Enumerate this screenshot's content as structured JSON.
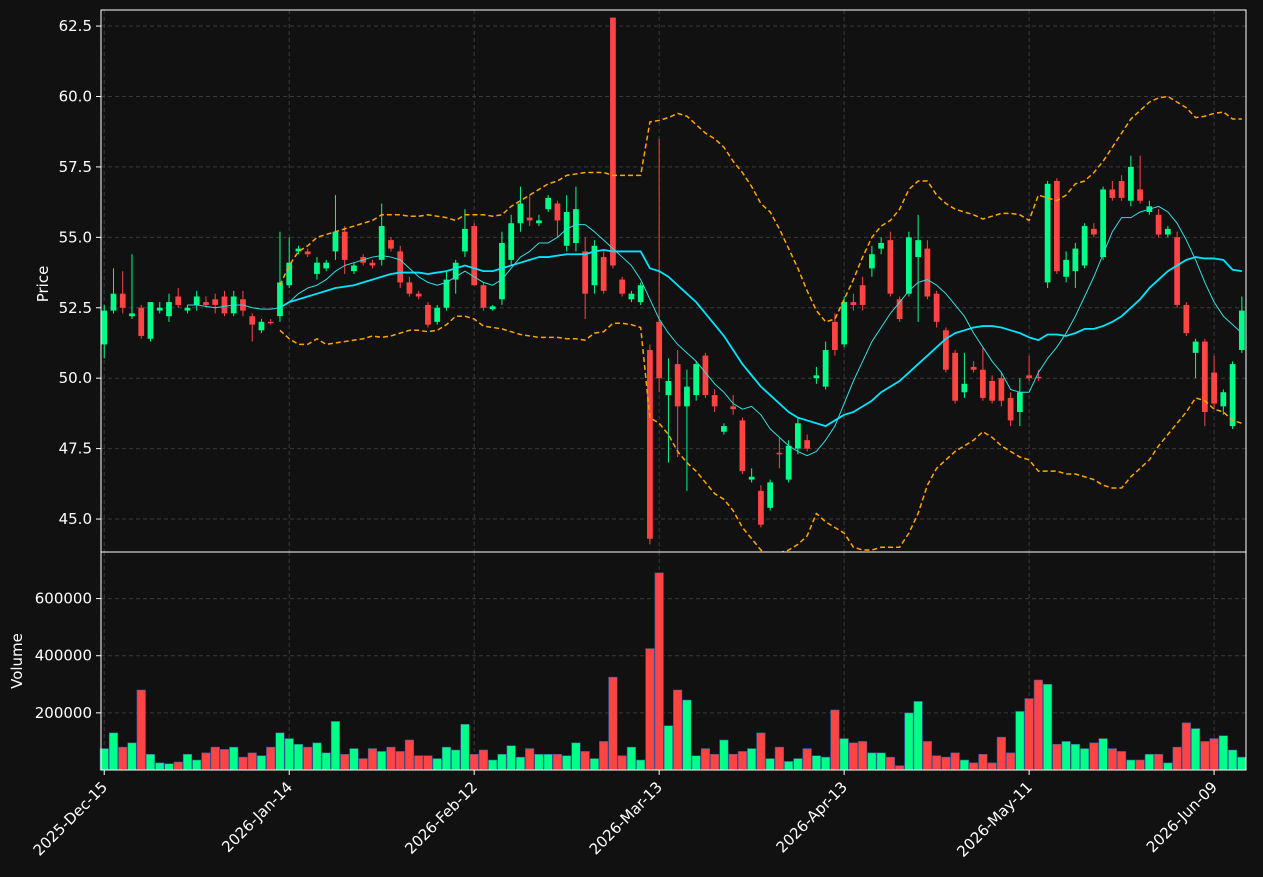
{
  "chart_data": {
    "type": "candlestick",
    "categories": [
      "2025-Dec-15",
      null,
      null,
      null,
      null,
      null,
      null,
      null,
      null,
      null,
      null,
      null,
      null,
      null,
      null,
      null,
      null,
      null,
      null,
      null,
      "2026-Jan-14",
      null,
      null,
      null,
      null,
      null,
      null,
      null,
      null,
      null,
      null,
      null,
      null,
      null,
      null,
      null,
      null,
      null,
      null,
      null,
      "2026-Feb-12",
      null,
      null,
      null,
      null,
      null,
      null,
      null,
      null,
      null,
      null,
      null,
      null,
      null,
      null,
      null,
      null,
      null,
      null,
      null,
      "2026-Mar-13",
      null,
      null,
      null,
      null,
      null,
      null,
      null,
      null,
      null,
      null,
      null,
      null,
      null,
      null,
      null,
      null,
      null,
      null,
      null,
      "2026-Apr-13",
      null,
      null,
      null,
      null,
      null,
      null,
      null,
      null,
      null,
      null,
      null,
      null,
      null,
      null,
      null,
      null,
      null,
      null,
      null,
      "2026-May-11",
      null,
      null,
      null,
      null,
      null,
      null,
      null,
      null,
      null,
      null,
      null,
      null,
      null,
      null,
      null,
      null,
      null,
      null,
      null,
      "2026-Jun-09",
      null,
      null,
      null
    ],
    "xlim": [
      -0.35,
      123.45
    ],
    "ylabel": "Price",
    "ylim": [
      43.83,
      63.07
    ],
    "yticks": [
      {
        "value": 45,
        "label": "45.0"
      },
      47.5,
      {
        "value": 50,
        "label": "50.0"
      },
      52.5,
      {
        "value": 55,
        "label": "55.0"
      },
      57.5,
      {
        "value": 60,
        "label": "60.0"
      },
      62.5
    ],
    "y2label": "Volume",
    "y2lim": [
      0,
      763000
    ],
    "y2ticks": [
      200000,
      400000,
      600000
    ],
    "grid": true,
    "up_color": "#00ff88",
    "down_color": "#ff4444",
    "open": [
      51.2,
      52.4,
      53.0,
      52.2,
      52.5,
      51.4,
      52.4,
      52.2,
      52.9,
      52.4,
      52.6,
      52.7,
      52.8,
      52.9,
      52.3,
      52.8,
      52.2,
      51.7,
      52.0,
      52.2,
      53.3,
      54.5,
      54.5,
      53.7,
      53.9,
      54.5,
      55.2,
      53.8,
      54.3,
      54.1,
      54.2,
      54.9,
      54.5,
      53.4,
      53.0,
      52.6,
      52.0,
      52.5,
      53.5,
      54.5,
      55.4,
      53.3,
      52.45,
      52.8,
      54.2,
      55.5,
      55.7,
      55.5,
      56.0,
      56.2,
      54.7,
      54.8,
      54.5,
      53.3,
      54.3,
      62.8,
      53.5,
      52.8,
      52.7,
      51.0,
      52.0,
      49.4,
      50.5,
      49.0,
      49.4,
      50.8,
      49.4,
      48.1,
      49.0,
      48.5,
      46.4,
      46.0,
      45.4,
      47.35,
      46.4,
      47.5,
      47.8,
      50.0,
      49.7,
      52.0,
      51.2,
      52.7,
      53.3,
      53.9,
      54.6,
      54.9,
      52.8,
      53.0,
      54.3,
      54.6,
      53.0,
      51.7,
      50.9,
      49.5,
      50.4,
      50.3,
      49.9,
      50.0,
      49.3,
      48.8,
      50.1,
      50.05,
      53.4,
      57.0,
      53.6,
      53.8,
      54.0,
      55.3,
      54.3,
      56.7,
      57.0,
      56.3,
      56.7,
      55.9,
      55.8,
      55.1,
      55.0,
      52.6,
      50.9,
      51.3,
      50.2,
      49.0,
      48.3,
      51.0
    ],
    "high": [
      52.6,
      53.9,
      53.8,
      54.4,
      52.6,
      52.7,
      52.7,
      53.0,
      53.2,
      52.6,
      53.1,
      52.9,
      53.0,
      53.1,
      53.1,
      53.1,
      52.3,
      52.1,
      52.1,
      55.2,
      55.0,
      54.7,
      54.6,
      54.3,
      54.2,
      56.5,
      55.4,
      54.1,
      54.4,
      54.2,
      56.2,
      55.0,
      54.7,
      53.6,
      53.1,
      52.7,
      52.6,
      53.8,
      54.2,
      56.0,
      55.5,
      53.4,
      52.6,
      55.2,
      55.8,
      56.8,
      56.5,
      55.8,
      56.5,
      56.3,
      56.5,
      56.8,
      55.0,
      54.9,
      54.5,
      62.8,
      53.6,
      53.1,
      53.4,
      51.2,
      58.5,
      50.7,
      51.0,
      50.3,
      50.6,
      50.9,
      49.6,
      48.4,
      49.4,
      48.6,
      46.8,
      46.2,
      46.4,
      47.9,
      47.8,
      48.6,
      48.0,
      50.4,
      51.3,
      52.3,
      52.9,
      53.0,
      53.6,
      54.7,
      55.0,
      55.2,
      52.9,
      55.2,
      55.8,
      54.9,
      53.1,
      51.8,
      51.0,
      50.9,
      50.6,
      51.1,
      50.1,
      50.2,
      49.5,
      50.0,
      50.8,
      50.3,
      57.0,
      57.1,
      54.5,
      54.8,
      55.5,
      55.5,
      56.8,
      57.0,
      57.2,
      57.9,
      57.9,
      56.3,
      56.0,
      55.4,
      55.2,
      52.7,
      51.4,
      51.4,
      50.8,
      49.6,
      50.6,
      52.9
    ],
    "low": [
      50.7,
      52.3,
      52.3,
      52.1,
      51.4,
      51.3,
      52.3,
      52.0,
      52.5,
      52.3,
      52.4,
      52.5,
      52.3,
      52.2,
      52.2,
      52.2,
      51.3,
      51.6,
      51.9,
      52.0,
      53.2,
      54.4,
      54.3,
      53.5,
      53.8,
      54.2,
      53.7,
      53.7,
      54.0,
      53.9,
      54.0,
      54.5,
      53.2,
      52.9,
      52.8,
      51.8,
      51.9,
      52.4,
      53.0,
      54.3,
      53.3,
      52.4,
      52.4,
      52.6,
      54.0,
      55.2,
      55.4,
      55.4,
      55.9,
      55.0,
      54.5,
      54.5,
      52.1,
      53.0,
      53.0,
      53.9,
      52.9,
      52.7,
      52.6,
      44.1,
      49.5,
      47.0,
      47.2,
      46.0,
      49.2,
      49.3,
      48.8,
      48.0,
      48.7,
      46.6,
      46.3,
      44.7,
      45.3,
      46.8,
      46.3,
      47.3,
      47.4,
      49.8,
      49.6,
      50.8,
      51.1,
      52.4,
      52.4,
      53.6,
      54.4,
      52.9,
      52.0,
      52.9,
      52.0,
      52.8,
      51.8,
      50.2,
      49.1,
      49.3,
      50.2,
      49.2,
      49.1,
      49.0,
      48.3,
      48.3,
      49.9,
      49.9,
      53.2,
      53.7,
      53.4,
      53.2,
      53.9,
      55.0,
      54.2,
      56.3,
      56.3,
      56.1,
      56.2,
      55.8,
      55.0,
      55.0,
      52.5,
      51.5,
      50.0,
      48.3,
      48.9,
      48.7,
      48.2,
      50.9
    ],
    "close": [
      52.4,
      53.0,
      52.5,
      52.3,
      51.5,
      52.7,
      52.5,
      52.7,
      52.6,
      52.5,
      52.9,
      52.6,
      52.6,
      52.3,
      52.9,
      52.4,
      51.9,
      52.0,
      51.95,
      53.4,
      54.1,
      54.6,
      54.4,
      54.1,
      54.1,
      55.2,
      54.2,
      54.0,
      54.1,
      54.0,
      55.4,
      54.6,
      53.4,
      53.0,
      52.9,
      51.9,
      52.5,
      53.5,
      54.1,
      55.3,
      53.3,
      52.5,
      52.55,
      54.8,
      55.5,
      56.2,
      55.6,
      55.6,
      56.4,
      55.6,
      55.9,
      56.0,
      53.0,
      54.7,
      53.1,
      54.0,
      53.0,
      53.0,
      53.3,
      44.3,
      50.0,
      49.9,
      49.0,
      49.7,
      50.5,
      49.4,
      49.0,
      48.3,
      48.9,
      46.7,
      46.5,
      44.8,
      46.3,
      47.3,
      47.6,
      48.4,
      47.5,
      50.1,
      51.0,
      51.0,
      52.7,
      52.6,
      52.6,
      54.4,
      54.8,
      53.0,
      52.1,
      55.0,
      54.9,
      52.9,
      52.0,
      50.3,
      49.2,
      49.8,
      50.3,
      49.3,
      49.2,
      49.2,
      48.5,
      49.5,
      50.0,
      50.0,
      56.9,
      53.8,
      54.2,
      54.6,
      55.4,
      55.1,
      56.7,
      56.4,
      56.4,
      57.5,
      56.3,
      56.1,
      55.1,
      55.3,
      52.6,
      51.6,
      51.3,
      48.8,
      49.1,
      49.5,
      50.5,
      52.4
    ],
    "volume": [
      75000,
      130000,
      80000,
      95000,
      280000,
      55000,
      25000,
      22000,
      28000,
      55000,
      35000,
      60000,
      80000,
      72000,
      80000,
      45000,
      60000,
      50000,
      80000,
      130000,
      110000,
      90000,
      80000,
      95000,
      60000,
      170000,
      55000,
      75000,
      40000,
      75000,
      65000,
      80000,
      65000,
      105000,
      50000,
      50000,
      40000,
      80000,
      70000,
      160000,
      55000,
      70000,
      35000,
      55000,
      85000,
      45000,
      75000,
      55000,
      55000,
      55000,
      50000,
      95000,
      65000,
      40000,
      100000,
      325000,
      50000,
      80000,
      35000,
      425000,
      690000,
      155000,
      280000,
      245000,
      50000,
      75000,
      55000,
      105000,
      55000,
      65000,
      75000,
      130000,
      40000,
      80000,
      30000,
      40000,
      75000,
      50000,
      45000,
      210000,
      110000,
      95000,
      100000,
      60000,
      60000,
      45000,
      15000,
      200000,
      240000,
      100000,
      50000,
      45000,
      60000,
      35000,
      25000,
      55000,
      25000,
      115000,
      60000,
      205000,
      250000,
      315000,
      300000,
      90000,
      100000,
      90000,
      75000,
      95000,
      110000,
      75000,
      65000,
      35000,
      35000,
      55000,
      55000,
      25000,
      80000,
      165000,
      145000,
      100000,
      110000,
      120000,
      70000,
      45000
    ],
    "overlays": [
      {
        "color": "#00e5ff",
        "linewidth": 1.8,
        "dashed": false,
        "values": [
          null,
          null,
          null,
          null,
          null,
          null,
          null,
          null,
          null,
          null,
          null,
          null,
          null,
          null,
          null,
          null,
          null,
          null,
          null,
          52.5,
          52.7,
          52.8,
          52.9,
          53.0,
          53.1,
          53.2,
          53.25,
          53.3,
          53.4,
          53.5,
          53.6,
          53.7,
          53.75,
          53.75,
          53.75,
          53.7,
          53.75,
          53.8,
          53.9,
          54.0,
          53.9,
          53.8,
          53.8,
          53.9,
          54.0,
          54.1,
          54.2,
          54.3,
          54.3,
          54.35,
          54.4,
          54.4,
          54.4,
          54.5,
          54.55,
          54.5,
          54.5,
          54.5,
          54.5,
          53.9,
          53.8,
          53.6,
          53.3,
          53.0,
          52.7,
          52.3,
          51.9,
          51.5,
          51.0,
          50.5,
          50.1,
          49.7,
          49.4,
          49.1,
          48.8,
          48.6,
          48.5,
          48.4,
          48.3,
          48.5,
          48.7,
          48.8,
          49.0,
          49.2,
          49.5,
          49.7,
          49.9,
          50.2,
          50.5,
          50.8,
          51.1,
          51.4,
          51.6,
          51.7,
          51.8,
          51.85,
          51.85,
          51.8,
          51.7,
          51.6,
          51.45,
          51.35,
          51.55,
          51.55,
          51.5,
          51.6,
          51.75,
          51.75,
          51.85,
          52.0,
          52.2,
          52.5,
          52.8,
          53.2,
          53.5,
          53.8,
          54.0,
          54.2,
          54.3,
          54.25,
          54.25,
          54.2,
          53.85,
          53.8
        ]
      },
      {
        "color": "#33dddd",
        "linewidth": 1,
        "dashed": false,
        "values": [
          null,
          null,
          null,
          null,
          null,
          null,
          null,
          null,
          null,
          52.6,
          52.6,
          52.55,
          52.5,
          52.55,
          52.6,
          52.6,
          52.5,
          52.45,
          52.45,
          52.5,
          52.7,
          53.0,
          53.2,
          53.3,
          53.5,
          53.8,
          54.0,
          54.1,
          54.2,
          54.3,
          54.35,
          54.3,
          54.2,
          53.9,
          53.6,
          53.4,
          53.3,
          53.4,
          53.6,
          53.8,
          53.6,
          53.4,
          53.3,
          53.5,
          53.9,
          54.3,
          54.5,
          54.8,
          54.8,
          55.0,
          55.3,
          55.45,
          55.45,
          55.2,
          54.9,
          54.6,
          54.3,
          54.0,
          53.5,
          52.8,
          52.1,
          51.6,
          51.2,
          50.9,
          50.6,
          50.2,
          49.8,
          49.5,
          49.1,
          48.9,
          49.0,
          48.7,
          48.2,
          47.9,
          47.6,
          47.4,
          47.25,
          47.4,
          47.8,
          48.3,
          49.1,
          49.9,
          50.6,
          51.3,
          51.8,
          52.3,
          52.7,
          53.1,
          53.4,
          53.5,
          53.3,
          53.0,
          52.6,
          52.2,
          51.6,
          51.1,
          50.6,
          50.2,
          49.6,
          49.5,
          49.5,
          50.2,
          50.7,
          51.1,
          51.6,
          52.2,
          52.9,
          53.6,
          54.4,
          55.2,
          55.7,
          55.7,
          55.9,
          56.0,
          56.1,
          55.9,
          55.5,
          54.9,
          54.2,
          53.4,
          52.7,
          52.2,
          51.9,
          51.6
        ]
      },
      {
        "color": "#ffa500",
        "linewidth": 1.5,
        "dashed": true,
        "values": [
          null,
          null,
          null,
          null,
          null,
          null,
          null,
          null,
          null,
          null,
          null,
          null,
          null,
          null,
          null,
          null,
          null,
          null,
          null,
          53.3,
          54.0,
          54.5,
          54.7,
          55.0,
          55.1,
          55.2,
          55.3,
          55.4,
          55.5,
          55.6,
          55.8,
          55.8,
          55.8,
          55.75,
          55.75,
          55.8,
          55.75,
          55.7,
          55.6,
          55.8,
          55.8,
          55.8,
          55.75,
          55.8,
          56.1,
          56.3,
          56.5,
          56.7,
          56.9,
          57.0,
          57.2,
          57.25,
          57.3,
          57.3,
          57.3,
          57.2,
          57.2,
          57.2,
          57.2,
          59.1,
          59.15,
          59.25,
          59.4,
          59.3,
          59.0,
          58.7,
          58.5,
          58.2,
          57.7,
          57.3,
          56.8,
          56.2,
          55.9,
          55.3,
          54.6,
          53.9,
          53.1,
          52.4,
          52.0,
          52.1,
          52.8,
          53.5,
          54.3,
          55.0,
          55.4,
          55.6,
          56.0,
          56.7,
          57.0,
          57.0,
          56.5,
          56.2,
          56.0,
          55.9,
          55.8,
          55.65,
          55.75,
          55.85,
          55.85,
          55.8,
          55.6,
          56.5,
          56.4,
          56.3,
          56.5,
          56.9,
          57.0,
          57.3,
          57.7,
          58.2,
          58.7,
          59.2,
          59.5,
          59.8,
          59.95,
          60.0,
          59.8,
          59.6,
          59.25,
          59.3,
          59.4,
          59.45,
          59.2,
          59.2
        ]
      },
      {
        "color": "#ffa500",
        "linewidth": 1.5,
        "dashed": true,
        "values": [
          null,
          null,
          null,
          null,
          null,
          null,
          null,
          null,
          null,
          null,
          null,
          null,
          null,
          null,
          null,
          null,
          null,
          null,
          null,
          51.7,
          51.4,
          51.2,
          51.2,
          51.4,
          51.2,
          51.25,
          51.3,
          51.35,
          51.4,
          51.5,
          51.45,
          51.5,
          51.6,
          51.7,
          51.7,
          51.65,
          51.7,
          51.9,
          52.2,
          52.2,
          52.1,
          51.85,
          51.8,
          51.75,
          51.65,
          51.55,
          51.5,
          51.45,
          51.45,
          51.45,
          51.4,
          51.4,
          51.35,
          51.6,
          51.65,
          51.95,
          51.95,
          51.9,
          51.8,
          48.6,
          48.4,
          48.0,
          47.4,
          47.0,
          46.7,
          46.3,
          45.9,
          45.7,
          45.3,
          44.7,
          44.3,
          43.9,
          43.7,
          43.8,
          43.9,
          44.1,
          44.4,
          45.2,
          44.9,
          44.7,
          44.5,
          44.0,
          43.9,
          43.9,
          44.0,
          44.0,
          44.0,
          44.5,
          45.2,
          46.2,
          46.8,
          47.1,
          47.4,
          47.6,
          47.8,
          48.1,
          47.9,
          47.6,
          47.4,
          47.2,
          47.1,
          46.7,
          46.7,
          46.7,
          46.6,
          46.6,
          46.5,
          46.4,
          46.2,
          46.1,
          46.1,
          46.5,
          46.8,
          47.1,
          47.6,
          48.0,
          48.4,
          48.8,
          49.3,
          49.2,
          48.9,
          48.8,
          48.5,
          48.4
        ]
      }
    ]
  }
}
